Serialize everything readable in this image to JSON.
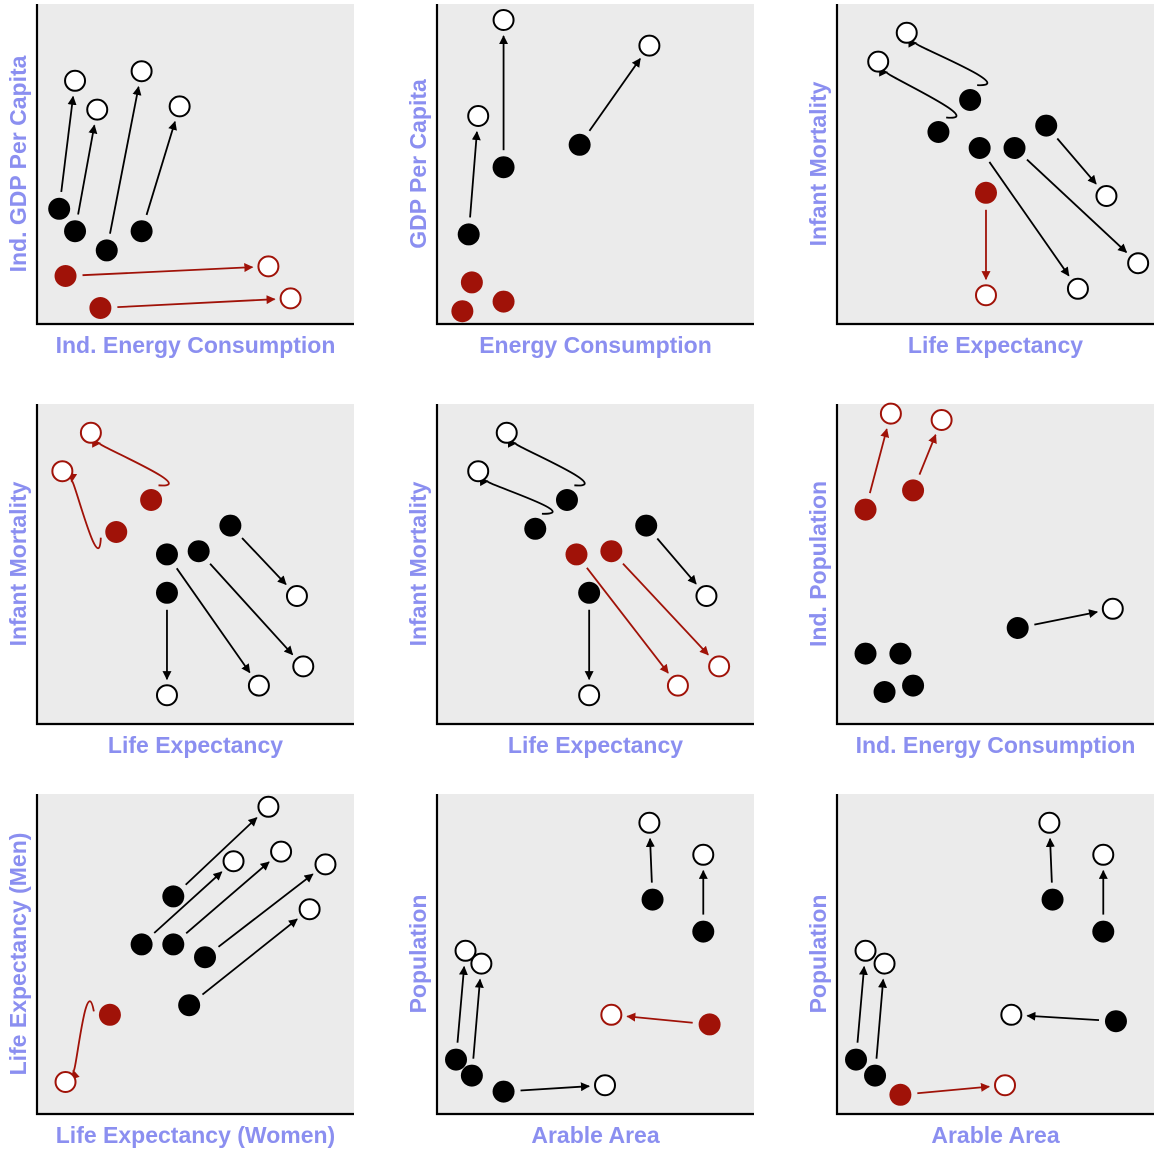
{
  "colors": {
    "black": "#000000",
    "red": "#a01208",
    "label": "#8b8ff0",
    "plot_bg": "#ebebeb"
  },
  "chart_data": [
    {
      "type": "scatter",
      "xlabel": "Ind. Energy Consumption",
      "ylabel": "Ind. GDP Per Capita",
      "xlim": [
        0,
        100
      ],
      "ylim": [
        0,
        100
      ],
      "moves": [
        {
          "from": [
            7,
            36
          ],
          "to": [
            12,
            76
          ],
          "color": "black",
          "shape": "line"
        },
        {
          "from": [
            12,
            29
          ],
          "to": [
            19,
            67
          ],
          "color": "black",
          "shape": "line"
        },
        {
          "from": [
            22,
            23
          ],
          "to": [
            33,
            79
          ],
          "color": "black",
          "shape": "line"
        },
        {
          "from": [
            33,
            29
          ],
          "to": [
            45,
            68
          ],
          "color": "black",
          "shape": "line"
        },
        {
          "from": [
            9,
            15
          ],
          "to": [
            73,
            18
          ],
          "color": "red",
          "shape": "line"
        },
        {
          "from": [
            20,
            5
          ],
          "to": [
            80,
            8
          ],
          "color": "red",
          "shape": "line"
        }
      ]
    },
    {
      "type": "scatter",
      "xlabel": "Energy Consumption",
      "ylabel": "GDP Per Capita",
      "xlim": [
        0,
        100
      ],
      "ylim": [
        0,
        100
      ],
      "moves": [
        {
          "from": [
            10,
            28
          ],
          "to": [
            13,
            65
          ],
          "color": "black",
          "shape": "line"
        },
        {
          "from": [
            21,
            49
          ],
          "to": [
            21,
            95
          ],
          "color": "black",
          "shape": "line"
        },
        {
          "from": [
            45,
            56
          ],
          "to": [
            67,
            87
          ],
          "color": "black",
          "shape": "line"
        },
        {
          "from": [
            11,
            13
          ],
          "to": null,
          "color": "red",
          "shape": "none"
        },
        {
          "from": [
            21,
            7
          ],
          "to": null,
          "color": "red",
          "shape": "none"
        },
        {
          "from": [
            8,
            4
          ],
          "to": null,
          "color": "red",
          "shape": "none"
        }
      ]
    },
    {
      "type": "scatter",
      "xlabel": "Life Expectancy",
      "ylabel": "Infant Mortality",
      "xlim": [
        0,
        100
      ],
      "ylim": [
        0,
        100
      ],
      "moves": [
        {
          "from": [
            32,
            60
          ],
          "to": [
            13,
            82
          ],
          "color": "black",
          "shape": "loop"
        },
        {
          "from": [
            42,
            70
          ],
          "to": [
            22,
            91
          ],
          "color": "black",
          "shape": "loop"
        },
        {
          "from": [
            66,
            62
          ],
          "to": [
            85,
            40
          ],
          "color": "black",
          "shape": "line"
        },
        {
          "from": [
            45,
            55
          ],
          "to": [
            76,
            11
          ],
          "color": "black",
          "shape": "line"
        },
        {
          "from": [
            56,
            55
          ],
          "to": [
            95,
            19
          ],
          "color": "black",
          "shape": "line"
        },
        {
          "from": [
            47,
            41
          ],
          "to": [
            47,
            9
          ],
          "color": "red",
          "shape": "line"
        }
      ]
    },
    {
      "type": "scatter",
      "xlabel": "Life Expectancy",
      "ylabel": "Infant Mortality",
      "xlim": [
        0,
        100
      ],
      "ylim": [
        0,
        100
      ],
      "moves": [
        {
          "from": [
            25,
            60
          ],
          "to": [
            8,
            79
          ],
          "color": "red",
          "shape": "loop"
        },
        {
          "from": [
            36,
            70
          ],
          "to": [
            17,
            91
          ],
          "color": "red",
          "shape": "loop"
        },
        {
          "from": [
            61,
            62
          ],
          "to": [
            82,
            40
          ],
          "color": "black",
          "shape": "line"
        },
        {
          "from": [
            41,
            41
          ],
          "to": [
            41,
            9
          ],
          "color": "black",
          "shape": "line"
        },
        {
          "from": [
            41,
            53
          ],
          "to": [
            70,
            12
          ],
          "color": "black",
          "shape": "line"
        },
        {
          "from": [
            51,
            54
          ],
          "to": [
            84,
            18
          ],
          "color": "black",
          "shape": "line"
        }
      ]
    },
    {
      "type": "scatter",
      "xlabel": "Life Expectancy",
      "ylabel": "Infant Mortality",
      "xlim": [
        0,
        100
      ],
      "ylim": [
        0,
        100
      ],
      "moves": [
        {
          "from": [
            31,
            61
          ],
          "to": [
            13,
            79
          ],
          "color": "black",
          "shape": "loop"
        },
        {
          "from": [
            41,
            70
          ],
          "to": [
            22,
            91
          ],
          "color": "black",
          "shape": "loop"
        },
        {
          "from": [
            66,
            62
          ],
          "to": [
            85,
            40
          ],
          "color": "black",
          "shape": "line"
        },
        {
          "from": [
            48,
            41
          ],
          "to": [
            48,
            9
          ],
          "color": "black",
          "shape": "line"
        },
        {
          "from": [
            44,
            53
          ],
          "to": [
            76,
            12
          ],
          "color": "red",
          "shape": "line"
        },
        {
          "from": [
            55,
            54
          ],
          "to": [
            89,
            18
          ],
          "color": "red",
          "shape": "line"
        }
      ]
    },
    {
      "type": "scatter",
      "xlabel": "Ind. Energy Consumption",
      "ylabel": "Ind. Population",
      "xlim": [
        0,
        100
      ],
      "ylim": [
        0,
        100
      ],
      "moves": [
        {
          "from": [
            9,
            67
          ],
          "to": [
            17,
            97
          ],
          "color": "red",
          "shape": "line"
        },
        {
          "from": [
            24,
            73
          ],
          "to": [
            33,
            95
          ],
          "color": "red",
          "shape": "line"
        },
        {
          "from": [
            57,
            30
          ],
          "to": [
            87,
            36
          ],
          "color": "black",
          "shape": "line"
        },
        {
          "from": [
            9,
            22
          ],
          "to": null,
          "color": "black",
          "shape": "none"
        },
        {
          "from": [
            20,
            22
          ],
          "to": null,
          "color": "black",
          "shape": "none"
        },
        {
          "from": [
            15,
            10
          ],
          "to": null,
          "color": "black",
          "shape": "none"
        },
        {
          "from": [
            24,
            12
          ],
          "to": null,
          "color": "black",
          "shape": "none"
        }
      ]
    },
    {
      "type": "scatter",
      "xlabel": "Life Expectancy (Women)",
      "ylabel": "Life Expectancy (Men)",
      "xlim": [
        0,
        100
      ],
      "ylim": [
        0,
        100
      ],
      "moves": [
        {
          "from": [
            43,
            68
          ],
          "to": [
            73,
            96
          ],
          "color": "black",
          "shape": "line"
        },
        {
          "from": [
            33,
            53
          ],
          "to": [
            62,
            79
          ],
          "color": "black",
          "shape": "line"
        },
        {
          "from": [
            43,
            53
          ],
          "to": [
            77,
            82
          ],
          "color": "black",
          "shape": "line"
        },
        {
          "from": [
            53,
            49
          ],
          "to": [
            91,
            78
          ],
          "color": "black",
          "shape": "line"
        },
        {
          "from": [
            48,
            34
          ],
          "to": [
            86,
            64
          ],
          "color": "black",
          "shape": "line"
        },
        {
          "from": [
            23,
            31
          ],
          "to": [
            9,
            10
          ],
          "color": "red",
          "shape": "loop"
        }
      ]
    },
    {
      "type": "scatter",
      "xlabel": "Arable Area",
      "ylabel": "Population",
      "xlim": [
        0,
        100
      ],
      "ylim": [
        0,
        100
      ],
      "moves": [
        {
          "from": [
            6,
            17
          ],
          "to": [
            9,
            51
          ],
          "color": "black",
          "shape": "line"
        },
        {
          "from": [
            11,
            12
          ],
          "to": [
            14,
            47
          ],
          "color": "black",
          "shape": "line"
        },
        {
          "from": [
            21,
            7
          ],
          "to": [
            53,
            9
          ],
          "color": "black",
          "shape": "line"
        },
        {
          "from": [
            68,
            67
          ],
          "to": [
            67,
            91
          ],
          "color": "black",
          "shape": "line"
        },
        {
          "from": [
            84,
            57
          ],
          "to": [
            84,
            81
          ],
          "color": "black",
          "shape": "line"
        },
        {
          "from": [
            86,
            28
          ],
          "to": [
            55,
            31
          ],
          "color": "red",
          "shape": "line"
        }
      ]
    },
    {
      "type": "scatter",
      "xlabel": "Arable Area",
      "ylabel": "Population",
      "xlim": [
        0,
        100
      ],
      "ylim": [
        0,
        100
      ],
      "moves": [
        {
          "from": [
            6,
            17
          ],
          "to": [
            9,
            51
          ],
          "color": "black",
          "shape": "line"
        },
        {
          "from": [
            12,
            12
          ],
          "to": [
            15,
            47
          ],
          "color": "black",
          "shape": "line"
        },
        {
          "from": [
            68,
            67
          ],
          "to": [
            67,
            91
          ],
          "color": "black",
          "shape": "line"
        },
        {
          "from": [
            84,
            57
          ],
          "to": [
            84,
            81
          ],
          "color": "black",
          "shape": "line"
        },
        {
          "from": [
            88,
            29
          ],
          "to": [
            55,
            31
          ],
          "color": "black",
          "shape": "line"
        },
        {
          "from": [
            20,
            6
          ],
          "to": [
            53,
            9
          ],
          "color": "red",
          "shape": "line"
        }
      ]
    }
  ]
}
